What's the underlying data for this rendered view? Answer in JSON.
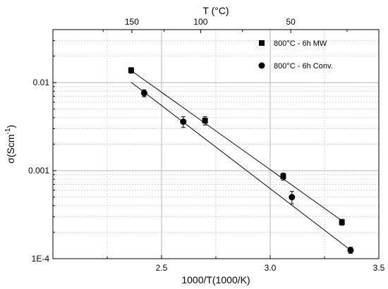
{
  "chart_data": {
    "type": "scatter",
    "x_scale": "linear",
    "y_scale": "log",
    "xlim": [
      2.0,
      3.5
    ],
    "ylim": [
      0.0001,
      0.04
    ],
    "x_ticks": [
      {
        "value": 2.5,
        "label": "2.5"
      },
      {
        "value": 3.0,
        "label": "3.0"
      },
      {
        "value": 3.5,
        "label": "3.5"
      }
    ],
    "y_ticks": [
      {
        "value": 0.0001,
        "label": "1E-4"
      },
      {
        "value": 0.001,
        "label": "0.001"
      },
      {
        "value": 0.01,
        "label": "0.01"
      }
    ],
    "top_ticks": [
      {
        "value": 150,
        "label": "150"
      },
      {
        "value": 100,
        "label": "100"
      },
      {
        "value": 50,
        "label": "50"
      }
    ],
    "xlabel": "1000/T(1000/K)",
    "ylabel_main": "σ(Scm",
    "ylabel_sup": "-1",
    "ylabel_end": ")",
    "top_xlabel": "T (°C)",
    "grid": true,
    "legend_position": "top-right",
    "series": [
      {
        "name": "800°C - 6h MW",
        "marker": "square",
        "x": [
          2.36,
          2.7,
          3.06,
          3.33
        ],
        "y": [
          0.0138,
          0.0037,
          0.00086,
          0.00026
        ],
        "yerr": [
          0.001,
          0.0004,
          8e-05,
          2e-05
        ],
        "fit": {
          "x": [
            2.36,
            3.33
          ],
          "y": [
            0.0137,
            0.00027
          ]
        }
      },
      {
        "name": "800°C - 6h Conv.",
        "marker": "circle",
        "x": [
          2.42,
          2.6,
          3.1,
          3.37
        ],
        "y": [
          0.0076,
          0.0036,
          0.0005,
          0.000125
        ],
        "yerr": [
          0.0007,
          0.0005,
          8e-05,
          1e-05
        ],
        "fit": {
          "x": [
            2.36,
            3.37
          ],
          "y": [
            0.0101,
            0.000125
          ]
        }
      }
    ]
  }
}
